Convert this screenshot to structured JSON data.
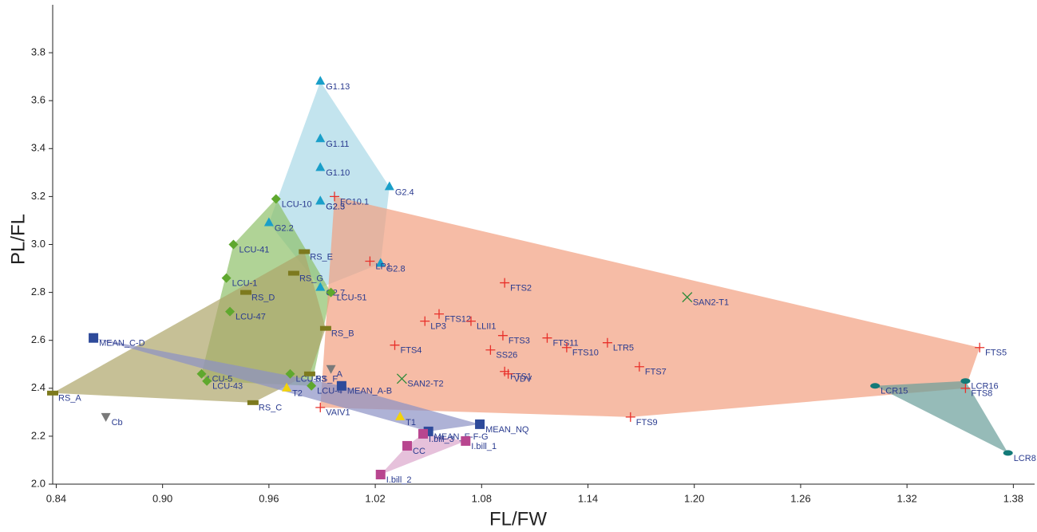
{
  "chart_data": {
    "type": "scatter",
    "xlabel": "FL/FW",
    "ylabel": "PL/FL",
    "xlim": [
      0.838,
      1.392
    ],
    "ylim": [
      2.0,
      4.0
    ],
    "xticks": [
      0.84,
      {
        "value": 0.9,
        "label": "0.90"
      },
      {
        "value": 0.96,
        "label": "0.96"
      },
      {
        "value": 1.02,
        "label": "1.02"
      },
      {
        "value": 1.08,
        "label": "1.08"
      },
      {
        "value": 1.14,
        "label": "1.14"
      },
      {
        "value": 1.2,
        "label": "1.20"
      },
      1.26,
      1.32,
      1.38
    ],
    "yticks": [
      {
        "value": 2,
        "label": "2.0"
      },
      2.2,
      2.4,
      2.6,
      2.8,
      {
        "value": 3,
        "label": "3.0"
      },
      3.2,
      3.4,
      3.6,
      3.8
    ],
    "series": [
      {
        "marker": "triangle",
        "color": "#1a9fc9",
        "hull": true,
        "hull_color": "#a9d9e7",
        "labels": [
          "G1.13",
          "G1.11",
          "G1.10",
          "G2.4",
          "G2.3",
          "G2.5",
          "G2.2",
          "G2.8",
          "G2.7"
        ],
        "x": [
          0.989,
          0.989,
          0.989,
          1.028,
          0.989,
          0.989,
          0.96,
          1.023,
          0.989
        ],
        "values": [
          3.68,
          3.44,
          3.32,
          3.24,
          3.18,
          3.18,
          3.09,
          2.92,
          2.82
        ]
      },
      {
        "marker": "diamond",
        "color": "#5fa82e",
        "hull": true,
        "hull_color": "#8fc06a",
        "labels": [
          "LCU-10",
          "LCU-41",
          "LCU-1",
          "LCU-47",
          "LCU-51",
          "LCU-53",
          "LCU-5",
          "LCU-43",
          "LCU-4"
        ],
        "x": [
          0.964,
          0.94,
          0.936,
          0.938,
          0.995,
          0.972,
          0.922,
          0.925,
          0.984
        ],
        "values": [
          3.19,
          3.0,
          2.86,
          2.72,
          2.8,
          2.46,
          2.46,
          2.43,
          2.41
        ]
      },
      {
        "marker": "bar",
        "color": "#7d7a1e",
        "hull": true,
        "hull_color": "#aea56a",
        "labels": [
          "RS_A",
          "RS_E",
          "RS_G",
          "RS_D",
          "RS_B",
          "RS_F",
          "RS_C"
        ],
        "x": [
          0.838,
          0.98,
          0.974,
          0.947,
          0.992,
          0.983,
          0.951
        ],
        "values": [
          2.38,
          2.97,
          2.88,
          2.8,
          2.65,
          2.46,
          2.34
        ]
      },
      {
        "marker": "plus",
        "color": "#e8302a",
        "hull": true,
        "hull_color": "#f2a080",
        "labels": [
          "FC10.1",
          "LP1",
          "FTS2",
          "FTS12",
          "LP3",
          "LLII1",
          "FTS3",
          "FTS11",
          "FTS10",
          "LTR5",
          "FTS4",
          "SS26",
          "FTS7",
          "FTS1",
          "VDV",
          "FTS5",
          "FTS8",
          "FTS9",
          "VAIV1"
        ],
        "x": [
          0.997,
          1.017,
          1.093,
          1.056,
          1.048,
          1.074,
          1.092,
          1.117,
          1.128,
          1.151,
          1.031,
          1.085,
          1.169,
          1.093,
          1.095,
          1.361,
          1.353,
          1.164,
          0.989
        ],
        "values": [
          3.2,
          2.93,
          2.84,
          2.71,
          2.68,
          2.68,
          2.62,
          2.61,
          2.57,
          2.59,
          2.58,
          2.56,
          2.49,
          2.47,
          2.46,
          2.57,
          2.4,
          2.28,
          2.32
        ]
      },
      {
        "marker": "cross",
        "color": "#2e8b3a",
        "hull": false,
        "labels": [
          "SAN2-T1",
          "SAN2-T2"
        ],
        "x": [
          1.196,
          1.035
        ],
        "values": [
          2.78,
          2.44
        ]
      },
      {
        "marker": "square",
        "color": "#2e4a9a",
        "hull": true,
        "hull_color": "#8b92c4",
        "labels": [
          "MEAN_C-D",
          "MEAN_A-B",
          "MEAN_NQ",
          "MEAN_E-F-G"
        ],
        "x": [
          0.861,
          1.001,
          1.079,
          1.05
        ],
        "values": [
          2.61,
          2.41,
          2.25,
          2.22
        ]
      },
      {
        "marker": "triangle",
        "color": "#f2d20c",
        "hull": false,
        "labels": [
          "T2",
          "T1"
        ],
        "x": [
          0.97,
          1.034
        ],
        "values": [
          2.4,
          2.28
        ]
      },
      {
        "marker": "triangle-down",
        "color": "#7a7a7a",
        "hull": false,
        "labels": [
          "A",
          "Cb"
        ],
        "x": [
          0.995,
          0.868
        ],
        "values": [
          2.48,
          2.28
        ]
      },
      {
        "marker": "square",
        "color": "#b8468f",
        "hull": true,
        "hull_color": "#dba6cc",
        "labels": [
          "I.bill_3",
          "I.bill_1",
          "I.bill_2",
          "CC"
        ],
        "x": [
          1.047,
          1.071,
          1.023,
          1.038
        ],
        "values": [
          2.21,
          2.18,
          2.04,
          2.16
        ]
      },
      {
        "marker": "ellipse",
        "color": "#137a78",
        "hull": true,
        "hull_color": "#6a9e9a",
        "labels": [
          "LCR15",
          "LCR16",
          "LCR8"
        ],
        "x": [
          1.302,
          1.353,
          1.377
        ],
        "values": [
          2.41,
          2.43,
          2.13
        ]
      }
    ]
  }
}
